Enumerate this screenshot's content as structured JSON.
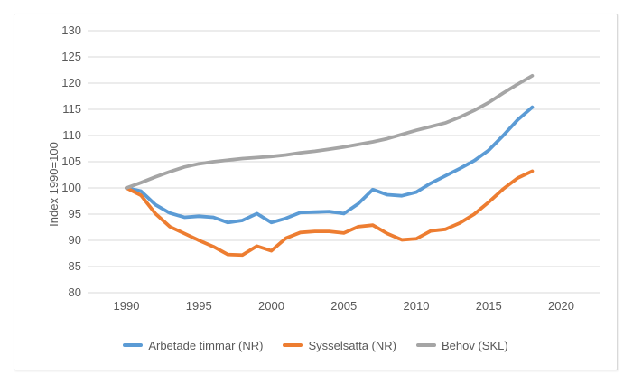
{
  "chart": {
    "background_color": "#FFFFFF",
    "frame_border_color": "#D9D9D9",
    "gridline_color": "#D9D9D9",
    "text_color": "#595959"
  },
  "chart_data": {
    "type": "line",
    "title": "",
    "xlabel": "",
    "ylabel": "Index 1990=100",
    "grid": true,
    "legend_position": "bottom",
    "ylim": [
      80,
      130
    ],
    "y_ticks": [
      80,
      85,
      90,
      95,
      100,
      105,
      110,
      115,
      120,
      125,
      130
    ],
    "x_ticks": [
      1990,
      1995,
      2000,
      2005,
      2010,
      2015,
      2020
    ],
    "x": [
      1990,
      1991,
      1992,
      1993,
      1994,
      1995,
      1996,
      1997,
      1998,
      1999,
      2000,
      2001,
      2002,
      2003,
      2004,
      2005,
      2006,
      2007,
      2008,
      2009,
      2010,
      2011,
      2012,
      2013,
      2014,
      2015,
      2016,
      2017,
      2018
    ],
    "series": [
      {
        "name": "Arbetade timmar (NR)",
        "color": "#5B9BD5",
        "values": [
          100,
          99.4,
          96.8,
          95.2,
          94.4,
          94.6,
          94.4,
          93.4,
          93.8,
          95.1,
          93.4,
          94.2,
          95.3,
          95.4,
          95.5,
          95.1,
          97.0,
          99.7,
          98.7,
          98.5,
          99.2,
          100.9,
          102.3,
          103.7,
          105.2,
          107.2,
          110.0,
          113.0,
          115.4
        ]
      },
      {
        "name": "Sysselsatta (NR)",
        "color": "#ED7D31",
        "values": [
          100,
          98.6,
          95.1,
          92.6,
          91.3,
          90.0,
          88.8,
          87.3,
          87.2,
          88.9,
          88.0,
          90.4,
          91.5,
          91.7,
          91.7,
          91.4,
          92.6,
          92.9,
          91.3,
          90.1,
          90.3,
          91.8,
          92.1,
          93.3,
          95.0,
          97.3,
          99.8,
          101.9,
          103.2
        ]
      },
      {
        "name": "Behov (SKL)",
        "color": "#A5A5A5",
        "values": [
          100,
          101.0,
          102.1,
          103.1,
          104.0,
          104.6,
          105.0,
          105.3,
          105.6,
          105.8,
          106.0,
          106.3,
          106.7,
          107.0,
          107.4,
          107.8,
          108.3,
          108.8,
          109.4,
          110.2,
          111.0,
          111.7,
          112.4,
          113.5,
          114.8,
          116.3,
          118.1,
          119.8,
          121.4
        ]
      }
    ]
  }
}
